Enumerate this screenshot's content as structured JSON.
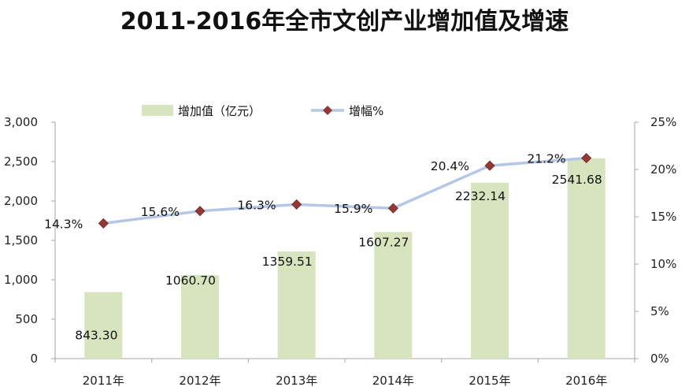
{
  "chart_data": {
    "type": "bar",
    "title": "2011-2016年全市文创产业增加值及增速",
    "categories": [
      "2011年",
      "2012年",
      "2013年",
      "2014年",
      "2015年",
      "2016年"
    ],
    "series": [
      {
        "name": "增加值（亿元）",
        "type": "bar",
        "axis": "left",
        "values": [
          843.3,
          1060.7,
          1359.51,
          1607.27,
          2232.14,
          2541.68
        ],
        "labels": [
          "843.30",
          "1060.70",
          "1359.51",
          "1607.27",
          "2232.14",
          "2541.68"
        ]
      },
      {
        "name": "增幅%",
        "type": "line",
        "axis": "right",
        "values": [
          14.3,
          15.6,
          16.3,
          15.9,
          20.4,
          21.2
        ],
        "labels": [
          "14.3%",
          "15.6%",
          "16.3%",
          "15.9%",
          "20.4%",
          "21.2%"
        ]
      }
    ],
    "y_left": {
      "ylim": [
        0,
        3000
      ],
      "ticks": [
        0,
        500,
        1000,
        1500,
        2000,
        2500,
        3000
      ],
      "tick_labels": [
        "0",
        "500",
        "1,000",
        "1,500",
        "2,000",
        "2,500",
        "3,000"
      ]
    },
    "y_right": {
      "ylim": [
        0,
        25
      ],
      "ticks": [
        0,
        5,
        10,
        15,
        20,
        25
      ],
      "tick_labels": [
        "0%",
        "5%",
        "10%",
        "15%",
        "20%",
        "25%"
      ]
    },
    "grid": false,
    "legend_position": "top-center"
  },
  "colors": {
    "bar": "#d7e4bd",
    "line": "#b4c7e7",
    "marker": "#953735",
    "axis": "#a6a6a6"
  }
}
